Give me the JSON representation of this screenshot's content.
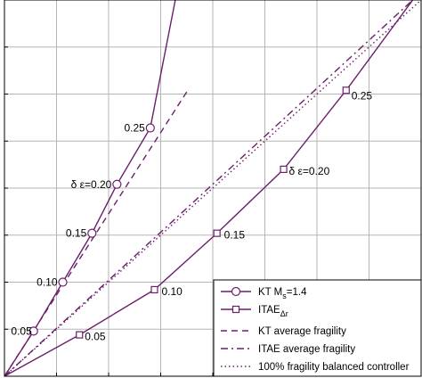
{
  "chart_data": {
    "type": "line",
    "title": "",
    "xlabel": "",
    "ylabel": "",
    "xlim": [
      0,
      1
    ],
    "ylim": [
      0,
      1
    ],
    "grid": true,
    "legend_position": "bottom-right",
    "series": [
      {
        "name": "KT M",
        "subscript": "s",
        "name_suffix": "=1.4",
        "style": "solid",
        "marker": "circle",
        "color": "#6b1f6b",
        "x": [
          0,
          0.07,
          0.14,
          0.21,
          0.27,
          0.35,
          0.41
        ],
        "y": [
          0,
          0.12,
          0.25,
          0.38,
          0.51,
          0.66,
          1.0
        ],
        "markers_x": [
          0.07,
          0.14,
          0.21,
          0.27,
          0.35
        ],
        "markers_y": [
          0.12,
          0.25,
          0.38,
          0.51,
          0.66
        ]
      },
      {
        "name": "ITAE",
        "subscript": "Δr",
        "name_suffix": "",
        "style": "solid",
        "marker": "square",
        "color": "#6b1f6b",
        "x": [
          0,
          0.18,
          0.36,
          0.51,
          0.67,
          0.82,
          0.98
        ],
        "y": [
          0,
          0.11,
          0.23,
          0.38,
          0.55,
          0.76,
          1.0
        ],
        "markers_x": [
          0.18,
          0.36,
          0.51,
          0.67,
          0.82
        ],
        "markers_y": [
          0.11,
          0.23,
          0.38,
          0.55,
          0.76
        ]
      },
      {
        "name": "KT average fragility",
        "style": "dashed",
        "color": "#6b1f6b",
        "x": [
          0,
          0.44
        ],
        "y": [
          0,
          0.76
        ]
      },
      {
        "name": "ITAE average fragility",
        "style": "dashdot",
        "color": "#6b1f6b",
        "x": [
          0,
          0.98
        ],
        "y": [
          0,
          1.0
        ]
      },
      {
        "name": "100% fragility balanced controller",
        "style": "dotted",
        "color": "#6b1f6b",
        "x": [
          0,
          1.0
        ],
        "y": [
          0,
          1.0
        ]
      }
    ],
    "annotations": [
      {
        "text": "0.05",
        "x": 0.07,
        "y": 0.12,
        "anchor": "end",
        "dx": -2,
        "dy": 4
      },
      {
        "text": "0.10",
        "x": 0.14,
        "y": 0.25,
        "anchor": "end",
        "dx": -6,
        "dy": 4
      },
      {
        "text": "0.15",
        "x": 0.21,
        "y": 0.38,
        "anchor": "end",
        "dx": -6,
        "dy": 4
      },
      {
        "text": "δ ε=0.20",
        "x": 0.27,
        "y": 0.51,
        "anchor": "end",
        "dx": -6,
        "dy": 4
      },
      {
        "text": "0.25",
        "x": 0.35,
        "y": 0.66,
        "anchor": "end",
        "dx": -6,
        "dy": 4
      },
      {
        "text": "0.05",
        "x": 0.18,
        "y": 0.11,
        "anchor": "start",
        "dx": 6,
        "dy": 6
      },
      {
        "text": "0.10",
        "x": 0.36,
        "y": 0.23,
        "anchor": "start",
        "dx": 8,
        "dy": 6
      },
      {
        "text": "0.15",
        "x": 0.51,
        "y": 0.38,
        "anchor": "start",
        "dx": 8,
        "dy": 6
      },
      {
        "text": "δ ε=0.20",
        "x": 0.67,
        "y": 0.55,
        "anchor": "start",
        "dx": 6,
        "dy": 6
      },
      {
        "text": "0.25",
        "x": 0.82,
        "y": 0.76,
        "anchor": "start",
        "dx": 6,
        "dy": 10
      }
    ],
    "gridlines": {
      "x": [
        0,
        0.125,
        0.25,
        0.375,
        0.5,
        0.625,
        0.75,
        0.875,
        1.0
      ],
      "y": [
        0,
        0.125,
        0.25,
        0.375,
        0.5,
        0.625,
        0.75,
        0.875,
        1.0
      ]
    }
  }
}
